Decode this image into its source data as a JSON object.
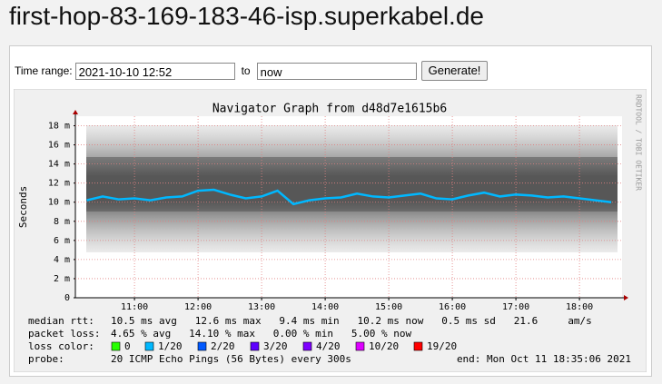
{
  "header": {
    "title": "first-hop-83-169-183-46-isp.superkabel.de"
  },
  "form": {
    "from_label": "Time range:",
    "from_value": "2021-10-10 12:52",
    "to_label": "to",
    "to_value": "now",
    "button": "Generate!"
  },
  "chart_data": {
    "type": "line",
    "title": "Navigator Graph from d48d7e1615b6",
    "y_label": "Seconds",
    "side_note": "RRDTOOL / TOBI OETIKER",
    "x": [
      10.25,
      10.5,
      10.75,
      11,
      11.25,
      11.5,
      11.75,
      12,
      12.25,
      12.5,
      12.75,
      13,
      13.25,
      13.5,
      13.75,
      14,
      14.25,
      14.5,
      14.75,
      15,
      15.25,
      15.5,
      15.75,
      16,
      16.25,
      16.5,
      16.75,
      17,
      17.25,
      17.5,
      17.75,
      18,
      18.25,
      18.5
    ],
    "series": [
      {
        "name": "median rtt:",
        "color": "#00b8ff",
        "values": [
          10.2,
          10.6,
          10.3,
          10.4,
          10.2,
          10.5,
          10.6,
          11.2,
          11.3,
          10.8,
          10.4,
          10.6,
          11.2,
          9.8,
          10.2,
          10.4,
          10.5,
          10.9,
          10.6,
          10.5,
          10.7,
          10.9,
          10.4,
          10.3,
          10.7,
          11.0,
          10.6,
          10.8,
          10.7,
          10.5,
          10.6,
          10.4,
          10.2,
          10.0
        ]
      }
    ],
    "xlim": [
      10.07,
      18.67
    ],
    "xticks": [
      {
        "value": 11,
        "label": "11:00"
      },
      {
        "value": 12,
        "label": "12:00"
      },
      {
        "value": 13,
        "label": "13:00"
      },
      {
        "value": 14,
        "label": "14:00"
      },
      {
        "value": 15,
        "label": "15:00"
      },
      {
        "value": 16,
        "label": "16:00"
      },
      {
        "value": 17,
        "label": "17:00"
      },
      {
        "value": 18,
        "label": "18:00"
      }
    ],
    "ylim": [
      0,
      19
    ],
    "yticks": [
      0,
      {
        "value": 2,
        "label": "2 m"
      },
      {
        "value": 4,
        "label": "4 m"
      },
      {
        "value": 6,
        "label": "6 m"
      },
      {
        "value": 8,
        "label": "8 m"
      },
      {
        "value": 10,
        "label": "10 m"
      },
      {
        "value": 12,
        "label": "12 m"
      },
      {
        "value": 14,
        "label": "14 m"
      },
      {
        "value": 16,
        "label": "16 m"
      },
      {
        "value": 18,
        "label": "18 m"
      }
    ],
    "grid": true,
    "grid_color": "#e08080",
    "legend": {
      "median_rtt": {
        "label": "median rtt:",
        "text": "10.5 ms avg   12.6 ms max   9.4 ms min   10.2 ms now   0.5 ms sd   21.6     am/s"
      },
      "packet_loss": {
        "label": "packet loss:",
        "text": "4.65 % avg   14.10 % max   0.00 % min   5.00 % now"
      },
      "loss_color": {
        "label": "loss color:",
        "items": [
          {
            "label": "0",
            "color": "#26ff00"
          },
          {
            "label": "1/20",
            "color": "#00b8ff"
          },
          {
            "label": "2/20",
            "color": "#0059ff"
          },
          {
            "label": "3/20",
            "color": "#5e00ff"
          },
          {
            "label": "4/20",
            "color": "#7e00ff"
          },
          {
            "label": "10/20",
            "color": "#dd00ff"
          },
          {
            "label": "19/20",
            "color": "#ff0000"
          }
        ]
      },
      "probe": {
        "label": "probe:",
        "text": "20 ICMP Echo Pings (56 Bytes) every 300s",
        "end": "end: Mon Oct 11 18:35:06 2021"
      }
    }
  }
}
